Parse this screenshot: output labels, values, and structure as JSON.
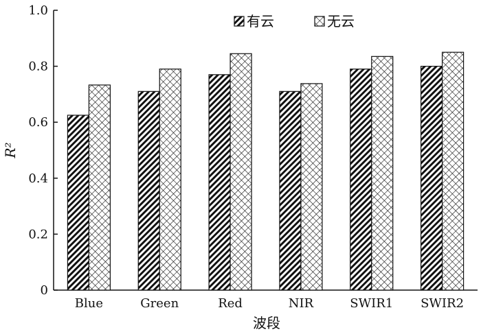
{
  "chart_data": {
    "type": "bar",
    "categories": [
      "Blue",
      "Green",
      "Red",
      "NIR",
      "SWIR1",
      "SWIR2"
    ],
    "series": [
      {
        "name": "有云",
        "pattern": "diagonal-hatch",
        "values": [
          0.625,
          0.71,
          0.77,
          0.71,
          0.79,
          0.8
        ]
      },
      {
        "name": "无云",
        "pattern": "crosshatch",
        "values": [
          0.733,
          0.79,
          0.845,
          0.738,
          0.835,
          0.85
        ]
      }
    ],
    "title": "",
    "xlabel": "波段",
    "ylabel": "R²",
    "ylim": [
      0,
      1.0
    ],
    "yticks": [
      "0",
      "0.2",
      "0.4",
      "0.6",
      "0.8",
      "1.0"
    ],
    "grid": false,
    "legend_position": "top-right",
    "colors": {
      "bar_stroke": "#111111",
      "background": "#ffffff"
    }
  }
}
